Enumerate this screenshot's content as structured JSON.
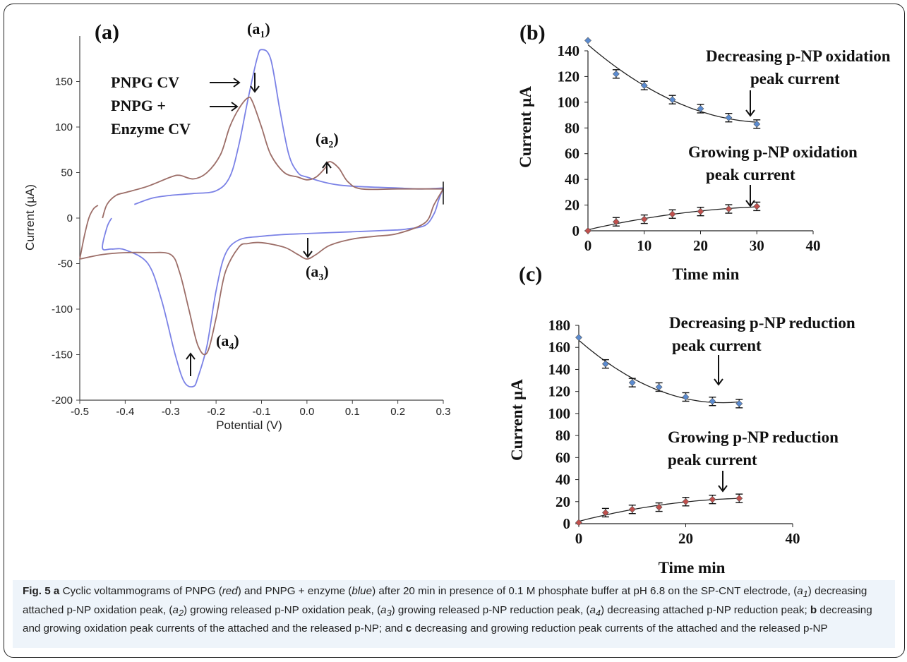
{
  "chart_data": [
    {
      "panel": "(a)",
      "type": "line",
      "xlabel": "Potential (V)",
      "ylabel": "Current (µA)",
      "xlim": [
        -0.5,
        0.3
      ],
      "ylim": [
        -200,
        200
      ],
      "xticks": [
        "-0.5",
        "-0.4",
        "-0.3",
        "-0.2",
        "-0.1",
        "0.0",
        "0.1",
        "0.2",
        "0.3"
      ],
      "yticks": [
        "-200",
        "-150",
        "-100",
        "-50",
        "0",
        "50",
        "100",
        "150"
      ],
      "series": [
        {
          "color": "#7b82e6",
          "x": [
            -0.38,
            -0.34,
            -0.3,
            -0.25,
            -0.2,
            -0.17,
            -0.15,
            -0.13,
            -0.11,
            -0.1,
            -0.08,
            -0.06,
            -0.04,
            -0.02,
            0.0,
            0.05,
            0.1,
            0.2,
            0.25,
            0.3
          ],
          "y": [
            15,
            22,
            25,
            27,
            30,
            45,
            80,
            130,
            175,
            185,
            175,
            120,
            70,
            50,
            45,
            38,
            35,
            33,
            32,
            33
          ]
        },
        {
          "color": "#7b82e6",
          "x": [
            0.3,
            0.29,
            0.28,
            0.26,
            0.22,
            0.2,
            0.15,
            0.1,
            0.05,
            0.0,
            -0.05,
            -0.1,
            -0.15,
            -0.18,
            -0.2,
            -0.22,
            -0.24,
            -0.25,
            -0.27,
            -0.29,
            -0.32,
            -0.35,
            -0.4,
            -0.43,
            -0.45,
            -0.44,
            -0.43
          ],
          "y": [
            33,
            20,
            5,
            -8,
            -12,
            -13,
            -14,
            -15,
            -16,
            -17,
            -18,
            -20,
            -24,
            -40,
            -80,
            -140,
            -175,
            -185,
            -180,
            -150,
            -90,
            -50,
            -35,
            -34,
            -33,
            -10,
            0
          ]
        },
        {
          "color": "#9c6e68",
          "x": [
            -0.45,
            -0.44,
            -0.42,
            -0.4,
            -0.35,
            -0.3,
            -0.28,
            -0.25,
            -0.22,
            -0.19,
            -0.17,
            -0.15,
            -0.13,
            -0.12,
            -0.1,
            -0.08,
            -0.05,
            -0.02,
            0.0,
            0.02,
            0.04,
            0.05,
            0.07,
            0.09,
            0.12,
            0.2,
            0.3
          ],
          "y": [
            0,
            15,
            25,
            28,
            35,
            45,
            47,
            43,
            50,
            70,
            100,
            120,
            132,
            128,
            100,
            70,
            50,
            45,
            42,
            45,
            55,
            62,
            55,
            40,
            32,
            32,
            32
          ]
        },
        {
          "color": "#9c6e68",
          "x": [
            0.3,
            0.28,
            0.26,
            0.2,
            0.15,
            0.1,
            0.05,
            0.02,
            0.0,
            -0.02,
            -0.05,
            -0.1,
            -0.13,
            -0.15,
            -0.18,
            -0.2,
            -0.22,
            -0.24,
            -0.26,
            -0.28,
            -0.3,
            -0.35,
            -0.4,
            -0.45,
            -0.5
          ],
          "y": [
            32,
            15,
            -5,
            -17,
            -20,
            -23,
            -30,
            -40,
            -45,
            -40,
            -32,
            -27,
            -28,
            -32,
            -60,
            -110,
            -148,
            -140,
            -100,
            -60,
            -40,
            -38,
            -38,
            -40,
            -45
          ]
        },
        {
          "color": "#9c6e68",
          "x": [
            -0.5,
            -0.49,
            -0.48,
            -0.47,
            -0.46
          ],
          "y": [
            -45,
            -20,
            0,
            10,
            14
          ]
        }
      ],
      "annotations": [
        "(a1)",
        "(a2)",
        "(a3)",
        "(a4)",
        "PNPG CV",
        "PNPG +",
        "Enzyme CV"
      ]
    },
    {
      "panel": "(b)",
      "type": "scatter",
      "xlabel": "Time min",
      "ylabel": "Current µA",
      "xlim": [
        0,
        40
      ],
      "ylim": [
        0,
        140
      ],
      "xticks": [
        "0",
        "10",
        "20",
        "30",
        "40"
      ],
      "yticks": [
        "0",
        "20",
        "40",
        "60",
        "80",
        "100",
        "120",
        "140"
      ],
      "series": [
        {
          "color": "#5b8bd0",
          "x": [
            0,
            5,
            10,
            15,
            20,
            25,
            30
          ],
          "y": [
            148,
            122,
            113,
            102,
            95,
            88,
            83
          ],
          "label": "Decreasing p-NP oxidation peak current"
        },
        {
          "color": "#c0504d",
          "x": [
            0,
            5,
            10,
            15,
            20,
            25,
            30
          ],
          "y": [
            0,
            7,
            9,
            13,
            15,
            17,
            19
          ],
          "label": "Growing  p-NP oxidation peak current"
        }
      ]
    },
    {
      "panel": "(c)",
      "type": "scatter",
      "xlabel": "Time min",
      "ylabel": "Current µA",
      "xlim": [
        0,
        40
      ],
      "ylim": [
        0,
        180
      ],
      "xticks": [
        "0",
        "20",
        "40"
      ],
      "yticks": [
        "0",
        "20",
        "40",
        "60",
        "80",
        "100",
        "120",
        "140",
        "160",
        "180"
      ],
      "series": [
        {
          "color": "#5b8bd0",
          "x": [
            0,
            5,
            10,
            15,
            20,
            25,
            30
          ],
          "y": [
            169,
            145,
            128,
            124,
            115,
            111,
            109
          ],
          "label": "Decreasing p-NP reduction peak current"
        },
        {
          "color": "#c0504d",
          "x": [
            0,
            5,
            10,
            15,
            20,
            25,
            30
          ],
          "y": [
            1,
            10,
            13,
            15,
            20,
            22,
            23
          ],
          "label": "Growing  p-NP reduction peak current"
        }
      ]
    }
  ],
  "text": {
    "panel_a": "(a)",
    "panel_b": "(b)",
    "panel_c": "(c)",
    "a1": "(a",
    "a1_sub": "1",
    "a2": "(a",
    "a2_sub": "2",
    "a3": "(a",
    "a3_sub": "3",
    "a4": "(a",
    "a4_sub": "4",
    "pnpg_cv": "PNPG CV",
    "pnpg_plus": "PNPG +",
    "enzyme_cv": "Enzyme CV",
    "b_dec_1": "Decreasing p-NP oxidation",
    "b_dec_2": "peak current",
    "b_grow_1": "Growing  p-NP oxidation",
    "b_grow_2": "peak current",
    "c_dec_1": "Decreasing p-NP reduction",
    "c_dec_2": "peak current",
    "c_grow_1": "Growing  p-NP reduction",
    "c_grow_2": "peak current"
  },
  "caption": {
    "fig": "Fig. 5",
    "a": "a",
    "t1": " Cyclic voltammograms of PNPG (",
    "red": "red",
    "t2": ") and PNPG + enzyme (",
    "blue": "blue",
    "t3": ") after 20 min in presence of 0.1 M phosphate buffer at pH 6.8 on the SP-CNT electrode, (",
    "a1": "a",
    "a1s": "1",
    "t4": ") decreasing attached p-NP oxidation peak, (",
    "a2": "a",
    "a2s": "2",
    "t5": ") growing released p-NP oxidation peak, (",
    "a3": "a",
    "a3s": "3",
    "t6": ") growing released p-NP reduction peak, (",
    "a4": "a",
    "a4s": "4",
    "t7": ") decreasing attached p-NP reduction peak; ",
    "b": "b",
    "t8": " decreasing and growing oxidation peak currents of the attached and the released p-NP; and ",
    "c": "c",
    "t9": " decreasing and growing reduction peak currents of the attached and the released p-NP"
  }
}
